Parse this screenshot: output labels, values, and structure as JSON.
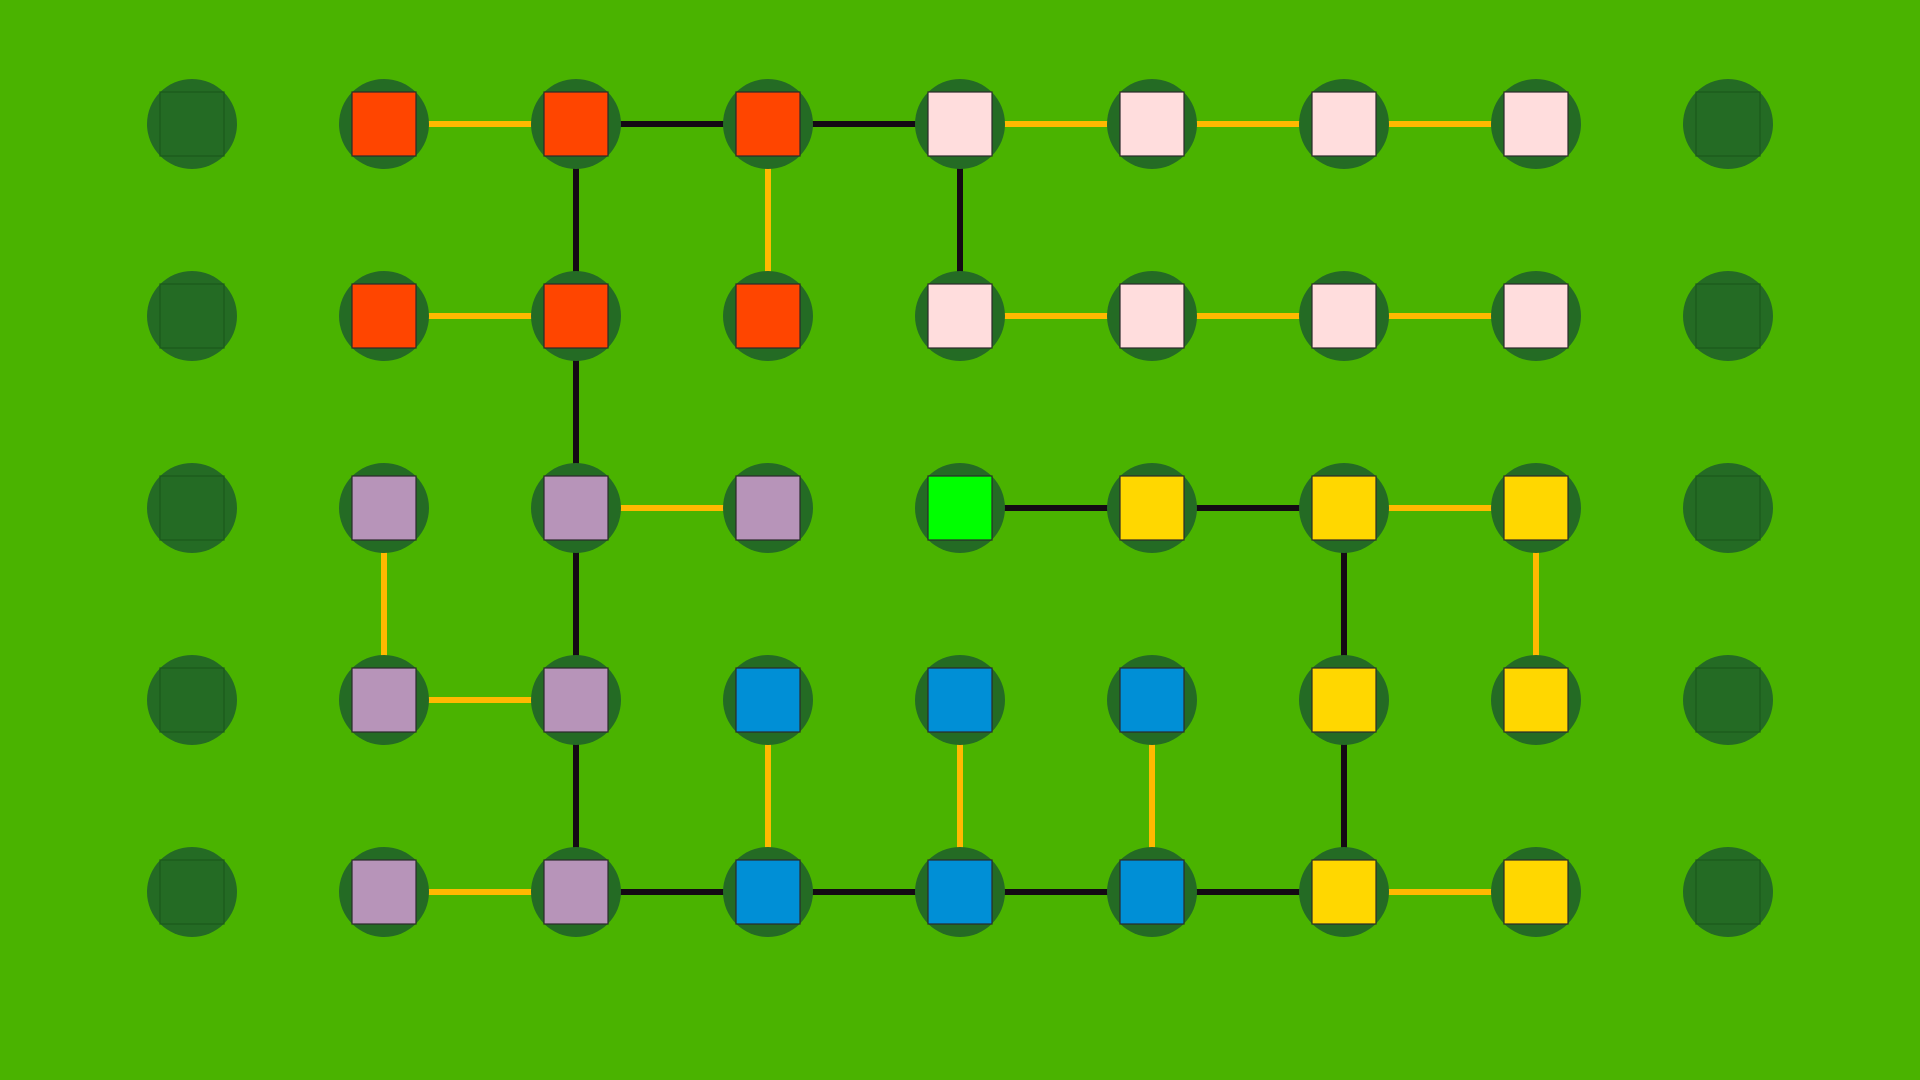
{
  "board": {
    "background_color": "#4ab300",
    "node_circle_color": "#246b24",
    "empty_tile_color": "#246b24",
    "tile_colors": {
      "orange": "#ff4500",
      "pink": "#ffdddd",
      "purple": "#b794b9",
      "green": "#00ff00",
      "yellow": "#ffd700",
      "blue": "#008fd6",
      "empty": "#246b24"
    },
    "link_colors": {
      "gold": "#ffb900",
      "black": "#140a14"
    },
    "rows": 5,
    "cols": 9,
    "cells": [
      [
        "empty",
        "orange",
        "orange",
        "orange",
        "pink",
        "pink",
        "pink",
        "pink",
        "empty"
      ],
      [
        "empty",
        "orange",
        "orange",
        "orange",
        "pink",
        "pink",
        "pink",
        "pink",
        "empty"
      ],
      [
        "empty",
        "purple",
        "purple",
        "purple",
        "green",
        "yellow",
        "yellow",
        "yellow",
        "empty"
      ],
      [
        "empty",
        "purple",
        "purple",
        "blue",
        "blue",
        "blue",
        "yellow",
        "yellow",
        "empty"
      ],
      [
        "empty",
        "purple",
        "purple",
        "blue",
        "blue",
        "blue",
        "yellow",
        "yellow",
        "empty"
      ]
    ],
    "links": [
      {
        "from": [
          0,
          1
        ],
        "to": [
          0,
          2
        ],
        "color": "gold"
      },
      {
        "from": [
          0,
          2
        ],
        "to": [
          0,
          3
        ],
        "color": "black"
      },
      {
        "from": [
          0,
          3
        ],
        "to": [
          0,
          4
        ],
        "color": "black"
      },
      {
        "from": [
          0,
          4
        ],
        "to": [
          0,
          5
        ],
        "color": "gold"
      },
      {
        "from": [
          0,
          5
        ],
        "to": [
          0,
          6
        ],
        "color": "gold"
      },
      {
        "from": [
          0,
          6
        ],
        "to": [
          0,
          7
        ],
        "color": "gold"
      },
      {
        "from": [
          0,
          2
        ],
        "to": [
          1,
          2
        ],
        "color": "black"
      },
      {
        "from": [
          0,
          3
        ],
        "to": [
          1,
          3
        ],
        "color": "gold"
      },
      {
        "from": [
          0,
          4
        ],
        "to": [
          1,
          4
        ],
        "color": "black"
      },
      {
        "from": [
          1,
          1
        ],
        "to": [
          1,
          2
        ],
        "color": "gold"
      },
      {
        "from": [
          1,
          4
        ],
        "to": [
          1,
          5
        ],
        "color": "gold"
      },
      {
        "from": [
          1,
          5
        ],
        "to": [
          1,
          6
        ],
        "color": "gold"
      },
      {
        "from": [
          1,
          6
        ],
        "to": [
          1,
          7
        ],
        "color": "gold"
      },
      {
        "from": [
          1,
          2
        ],
        "to": [
          2,
          2
        ],
        "color": "black"
      },
      {
        "from": [
          2,
          2
        ],
        "to": [
          2,
          3
        ],
        "color": "gold"
      },
      {
        "from": [
          2,
          4
        ],
        "to": [
          2,
          5
        ],
        "color": "black"
      },
      {
        "from": [
          2,
          5
        ],
        "to": [
          2,
          6
        ],
        "color": "black"
      },
      {
        "from": [
          2,
          6
        ],
        "to": [
          2,
          7
        ],
        "color": "gold"
      },
      {
        "from": [
          2,
          1
        ],
        "to": [
          3,
          1
        ],
        "color": "gold"
      },
      {
        "from": [
          2,
          2
        ],
        "to": [
          3,
          2
        ],
        "color": "black"
      },
      {
        "from": [
          2,
          6
        ],
        "to": [
          3,
          6
        ],
        "color": "black"
      },
      {
        "from": [
          2,
          7
        ],
        "to": [
          3,
          7
        ],
        "color": "gold"
      },
      {
        "from": [
          3,
          1
        ],
        "to": [
          3,
          2
        ],
        "color": "gold"
      },
      {
        "from": [
          3,
          2
        ],
        "to": [
          4,
          2
        ],
        "color": "black"
      },
      {
        "from": [
          3,
          3
        ],
        "to": [
          4,
          3
        ],
        "color": "gold"
      },
      {
        "from": [
          3,
          4
        ],
        "to": [
          4,
          4
        ],
        "color": "gold"
      },
      {
        "from": [
          3,
          5
        ],
        "to": [
          4,
          5
        ],
        "color": "gold"
      },
      {
        "from": [
          3,
          6
        ],
        "to": [
          4,
          6
        ],
        "color": "black"
      },
      {
        "from": [
          4,
          1
        ],
        "to": [
          4,
          2
        ],
        "color": "gold"
      },
      {
        "from": [
          4,
          2
        ],
        "to": [
          4,
          3
        ],
        "color": "black"
      },
      {
        "from": [
          4,
          3
        ],
        "to": [
          4,
          4
        ],
        "color": "black"
      },
      {
        "from": [
          4,
          4
        ],
        "to": [
          4,
          5
        ],
        "color": "black"
      },
      {
        "from": [
          4,
          5
        ],
        "to": [
          4,
          6
        ],
        "color": "black"
      },
      {
        "from": [
          4,
          6
        ],
        "to": [
          4,
          7
        ],
        "color": "gold"
      }
    ]
  }
}
